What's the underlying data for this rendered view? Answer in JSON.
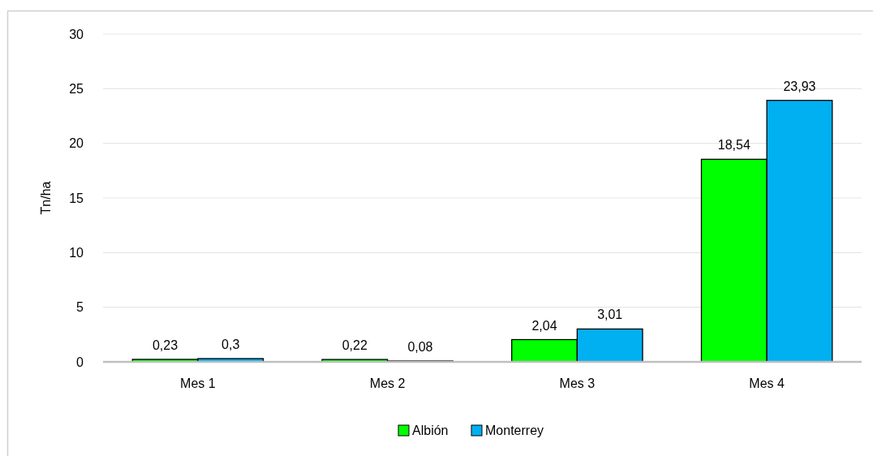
{
  "chart_data": {
    "type": "bar",
    "ylabel": "Tn/ha",
    "categories": [
      "Mes 1",
      "Mes 2",
      "Mes 3",
      "Mes 4"
    ],
    "series": [
      {
        "name": "Albión",
        "color": "#00ff00",
        "values": [
          0.23,
          0.22,
          2.04,
          18.54
        ],
        "value_labels": [
          "0,23",
          "0,22",
          "2,04",
          "18,54"
        ]
      },
      {
        "name": "Monterrey",
        "color": "#00b0f0",
        "values": [
          0.3,
          0.08,
          3.01,
          23.93
        ],
        "value_labels": [
          "0,3",
          "0,08",
          "3,01",
          "23,93"
        ]
      }
    ],
    "ylim": [
      0,
      30
    ],
    "yticks": [
      0,
      5,
      10,
      15,
      20,
      25,
      30
    ],
    "grid": "y",
    "legend": "bottom"
  }
}
